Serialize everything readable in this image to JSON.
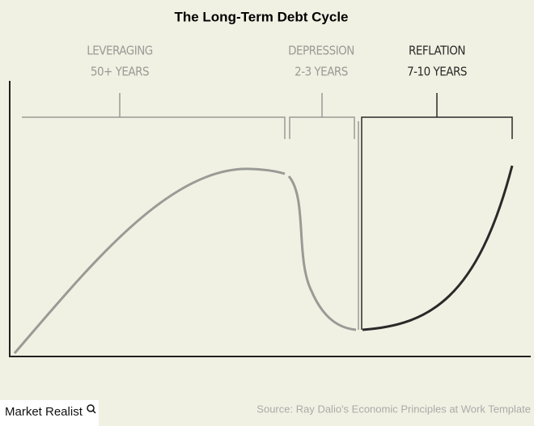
{
  "header": {
    "title": "The Long-Term Debt Cycle"
  },
  "phases": [
    {
      "label": "LEVERAGING",
      "duration": "50+ YEARS"
    },
    {
      "label": "DEPRESSION",
      "duration": "2-3 YEARS"
    },
    {
      "label": "REFLATION",
      "duration": "7-10 YEARS"
    }
  ],
  "footer": {
    "brand": "Market Realist",
    "source": "Source: Ray Dalio's Economic Principles at Work Template"
  }
}
